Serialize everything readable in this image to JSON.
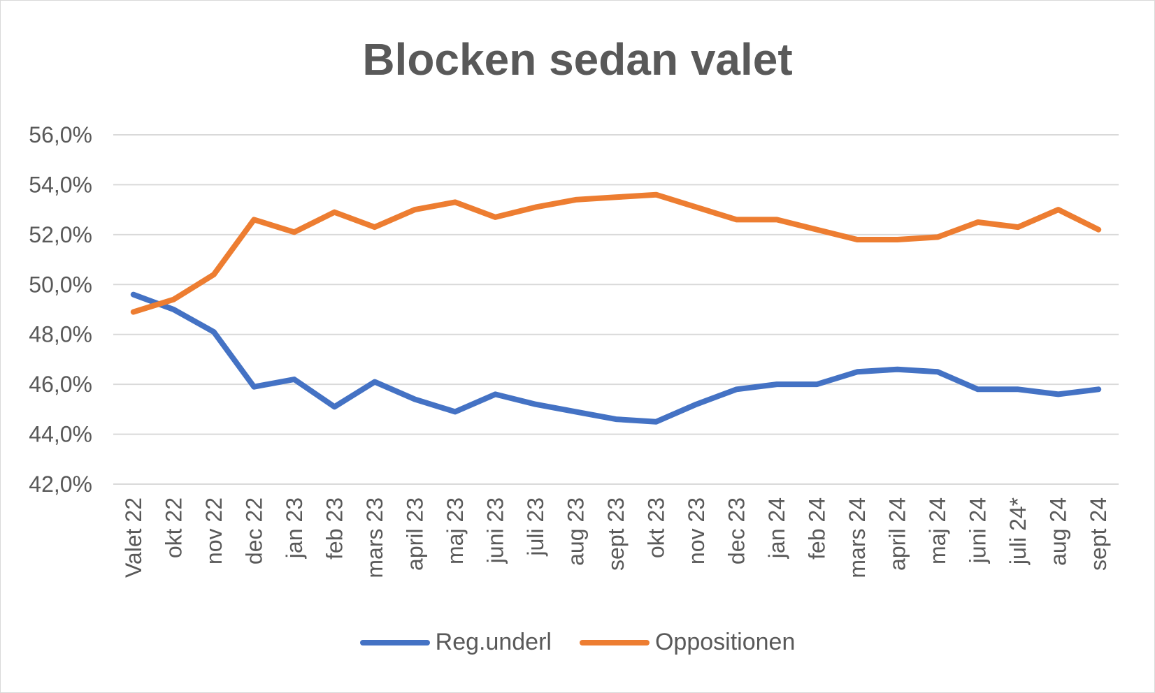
{
  "chart_data": {
    "type": "line",
    "title": "Blocken sedan valet",
    "xlabel": "",
    "ylabel": "",
    "categories": [
      "Valet 22",
      "okt 22",
      "nov 22",
      "dec 22",
      "jan 23",
      "feb 23",
      "mars 23",
      "april 23",
      "maj 23",
      "juni 23",
      "juli 23",
      "aug 23",
      "sept 23",
      "okt 23",
      "nov 23",
      "dec 23",
      "jan 24",
      "feb 24",
      "mars 24",
      "april 24",
      "maj 24",
      "juni 24",
      "juli 24*",
      "aug 24",
      "sept 24"
    ],
    "ylim": [
      42.0,
      56.0
    ],
    "yticks": [
      "42,0%",
      "44,0%",
      "46,0%",
      "48,0%",
      "50,0%",
      "52,0%",
      "54,0%",
      "56,0%"
    ],
    "ytick_values": [
      42,
      44,
      46,
      48,
      50,
      52,
      54,
      56
    ],
    "grid": true,
    "legend_position": "bottom",
    "series": [
      {
        "name": "Reg.underl",
        "color": "#4472c4",
        "values": [
          49.6,
          49.0,
          48.1,
          45.9,
          46.2,
          45.1,
          46.1,
          45.4,
          44.9,
          45.6,
          45.2,
          44.9,
          44.6,
          44.5,
          45.2,
          45.8,
          46.0,
          46.0,
          46.5,
          46.6,
          46.5,
          45.8,
          45.8,
          45.6,
          45.8
        ]
      },
      {
        "name": "Oppositionen",
        "color": "#ed7d31",
        "values": [
          48.9,
          49.4,
          50.4,
          52.6,
          52.1,
          52.9,
          52.3,
          53.0,
          53.3,
          52.7,
          53.1,
          53.4,
          53.5,
          53.6,
          53.1,
          52.6,
          52.6,
          52.2,
          51.8,
          51.8,
          51.9,
          52.5,
          52.3,
          53.0,
          52.2
        ]
      }
    ]
  }
}
